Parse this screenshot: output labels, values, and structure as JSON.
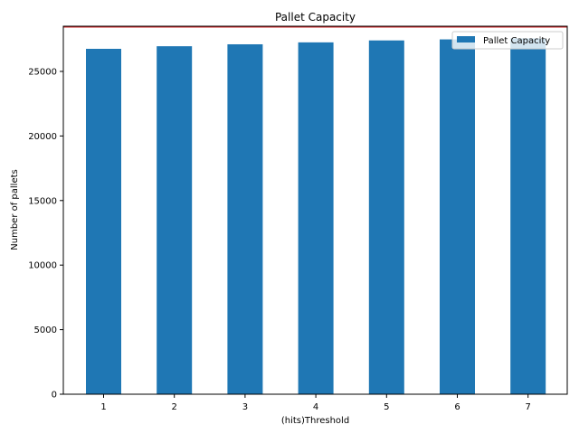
{
  "chart_data": {
    "type": "bar",
    "title": "Pallet Capacity",
    "xlabel": "(hits)Threshold",
    "ylabel": "Number of pallets",
    "categories": [
      "1",
      "2",
      "3",
      "4",
      "5",
      "6",
      "7"
    ],
    "series": [
      {
        "name": "Pallet Capacity",
        "color": "#1f77b4",
        "values": [
          26750,
          26950,
          27100,
          27250,
          27400,
          27480,
          27560
        ]
      }
    ],
    "reference_line": {
      "value": 28450,
      "color": "#d62728"
    },
    "ylim": [
      0,
      28500
    ],
    "yticks": [
      0,
      5000,
      10000,
      15000,
      20000,
      25000
    ],
    "ytick_labels": [
      "0",
      "5000",
      "10000",
      "15000",
      "20000",
      "25000"
    ],
    "legend_position": "top-right",
    "grid": false
  }
}
